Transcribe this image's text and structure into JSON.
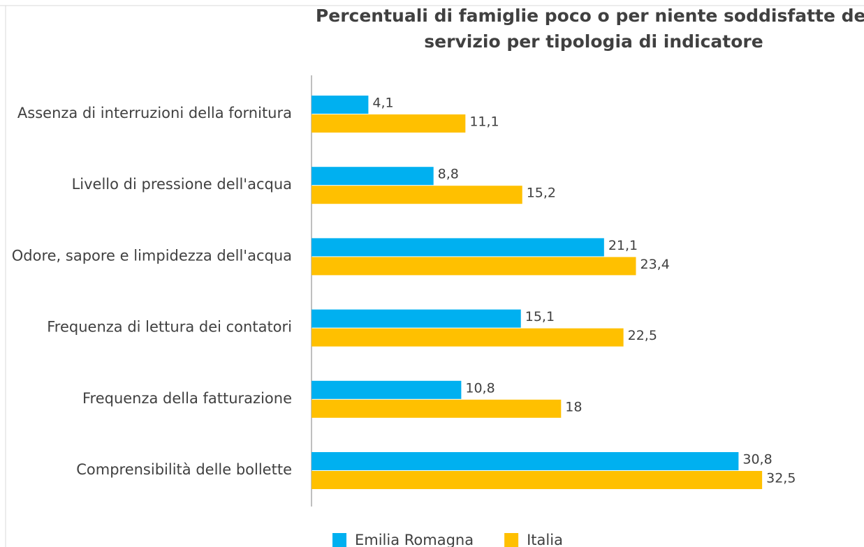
{
  "chart_data": {
    "type": "bar",
    "orientation": "horizontal",
    "title": "Percentuali di famiglie poco o per niente soddisfatte del servizio per tipologia di indicatore",
    "categories": [
      "Assenza di interruzioni della fornitura",
      "Livello di pressione dell'acqua",
      "Odore, sapore e limpidezza dell'acqua",
      "Frequenza di lettura dei contatori",
      "Frequenza della fatturazione",
      "Comprensibilità delle bollette"
    ],
    "series": [
      {
        "name": "Emilia Romagna",
        "color": "#00b0f0",
        "values": [
          4.1,
          8.8,
          21.1,
          15.1,
          10.8,
          30.8
        ],
        "value_labels": [
          "4,1",
          "8,8",
          "21,1",
          "15,1",
          "10,8",
          "30,8"
        ]
      },
      {
        "name": "Italia",
        "color": "#ffc000",
        "values": [
          11.1,
          15.2,
          23.4,
          22.5,
          18,
          32.5
        ],
        "value_labels": [
          "11,1",
          "15,2",
          "23,4",
          "22,5",
          "18",
          "32,5"
        ]
      }
    ],
    "xlim": [
      0,
      35
    ],
    "legend": "bottom"
  }
}
